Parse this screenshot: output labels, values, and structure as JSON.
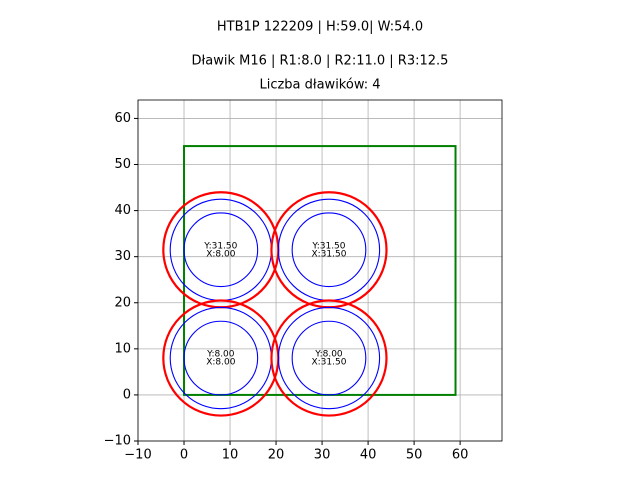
{
  "chart_data": {
    "type": "layout",
    "title": "HTB1P 122209 | H:59.0| W:54.0",
    "subtitle": "Dławik M16 | R1:8.0 | R2:11.0 | R3:12.5",
    "subtitle2": "Liczba dławików: 4",
    "xlim": [
      -10,
      69.1
    ],
    "ylim": [
      -10,
      64
    ],
    "xticks": [
      {
        "value": -10,
        "label": "−10"
      },
      0,
      10,
      20,
      30,
      40,
      50,
      60
    ],
    "yticks": [
      {
        "value": -10,
        "label": "−10"
      },
      0,
      10,
      20,
      30,
      40,
      50,
      60
    ],
    "grid": true,
    "rect": {
      "x": 0,
      "y": 0,
      "width": 59,
      "height": 54,
      "color": "#008000"
    },
    "radii": [
      {
        "value": 12.5,
        "color": "#ff0000",
        "linewidth": 2.2
      },
      {
        "value": 11,
        "color": "#0000ff",
        "linewidth": 1.1
      },
      {
        "value": 8,
        "color": "#0000ff",
        "linewidth": 1.1
      }
    ],
    "centers": [
      {
        "x": 8,
        "y": 31.5,
        "label_y": "Y:31.50",
        "label_x": "X:8.00"
      },
      {
        "x": 31.5,
        "y": 31.5,
        "label_y": "Y:31.50",
        "label_x": "X:31.50"
      },
      {
        "x": 8,
        "y": 8,
        "label_y": "Y:8.00",
        "label_x": "X:8.00"
      },
      {
        "x": 31.5,
        "y": 8,
        "label_y": "Y:8.00",
        "label_x": "X:31.50"
      }
    ]
  }
}
